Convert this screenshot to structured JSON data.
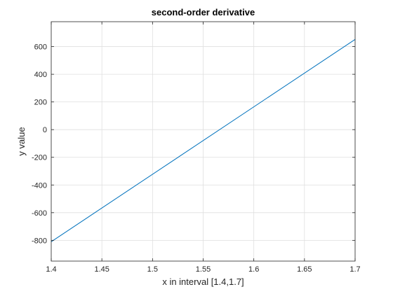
{
  "chart_data": {
    "type": "line",
    "title": "second-order derivative",
    "xlabel": "x in interval [1.4,1.7]",
    "ylabel": "y value",
    "xlim": [
      1.4,
      1.7
    ],
    "ylim": [
      -950,
      780
    ],
    "xticks": [
      1.4,
      1.45,
      1.5,
      1.55,
      1.6,
      1.65,
      1.7
    ],
    "xtick_labels": [
      "1.4",
      "1.45",
      "1.5",
      "1.55",
      "1.6",
      "1.65",
      "1.7"
    ],
    "yticks": [
      -800,
      -600,
      -400,
      -200,
      0,
      200,
      400,
      600
    ],
    "ytick_labels": [
      "-800",
      "-600",
      "-400",
      "-200",
      "0",
      "200",
      "400",
      "600"
    ],
    "grid": true,
    "series": [
      {
        "x": [
          1.4,
          1.7
        ],
        "y": [
          -810,
          652
        ]
      }
    ],
    "colors": {
      "line": "#0072bd",
      "grid": "#dfdfdf",
      "axis": "#262626"
    }
  }
}
